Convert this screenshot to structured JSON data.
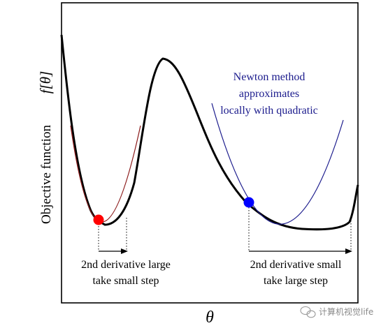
{
  "axes": {
    "y_label": "Objective function",
    "y_symbol": "f[θ]",
    "x_symbol": "θ"
  },
  "annotations": {
    "newton_line1": "Newton method",
    "newton_line2": "approximates",
    "newton_line3": "locally with quadratic",
    "left_line1": "2nd derivative large",
    "left_line2": "take small step",
    "right_line1": "2nd derivative small",
    "right_line2": "take large step"
  },
  "points": {
    "left_point": "red",
    "right_point": "blue"
  },
  "colors": {
    "objective_curve": "#000000",
    "left_quadratic": "#8b1a1a",
    "right_quadratic": "#1a1a8c",
    "annotation_text": "#1a1a8c",
    "left_point": "#ff0000",
    "right_point": "#0000ff"
  },
  "watermark": {
    "text": "计算机视觉life",
    "icon": "wechat-icon"
  }
}
